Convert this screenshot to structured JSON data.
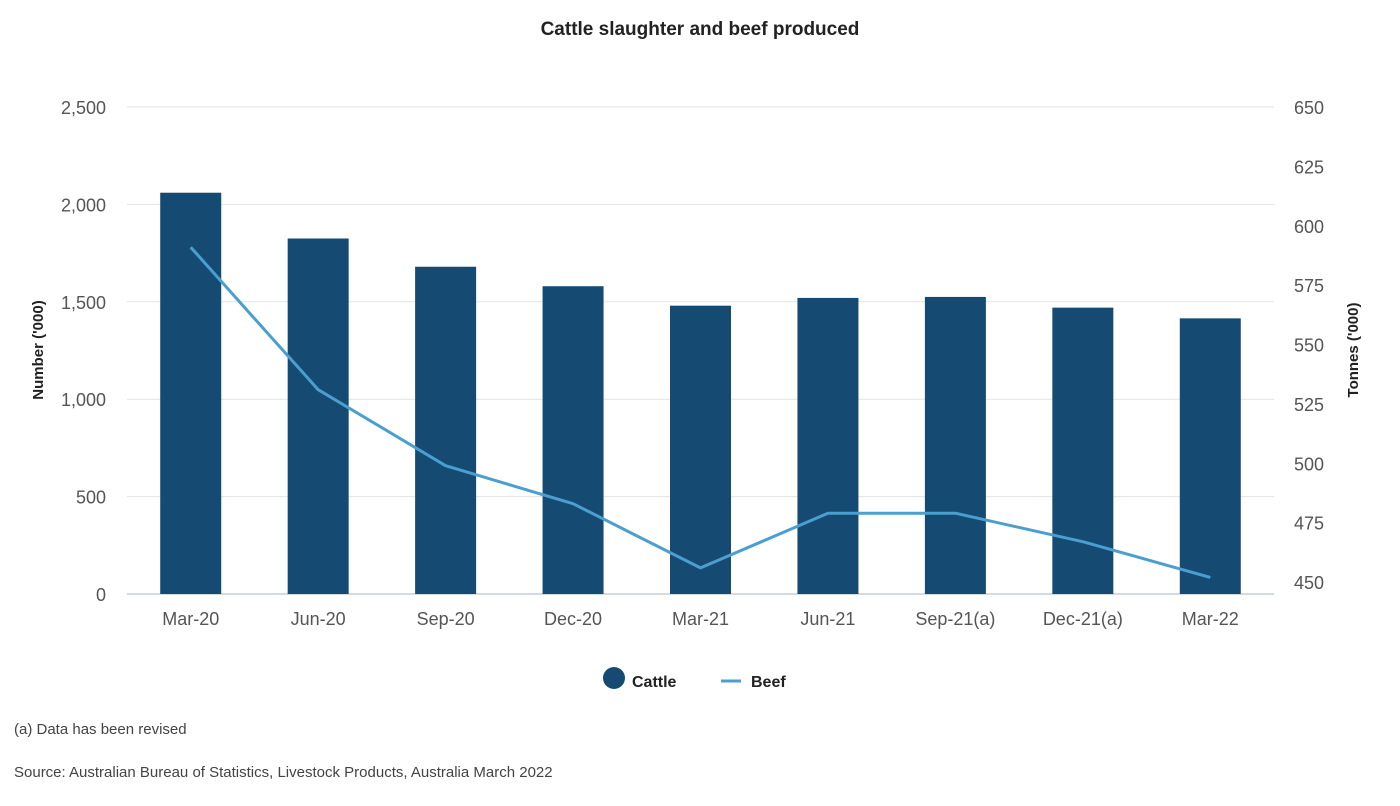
{
  "chart_data": {
    "type": "bar",
    "title": "Cattle slaughter and beef produced",
    "categories": [
      "Mar-20",
      "Jun-20",
      "Sep-20",
      "Dec-20",
      "Mar-21",
      "Jun-21",
      "Sep-21(a)",
      "Dec-21(a)",
      "Mar-22"
    ],
    "series": [
      {
        "name": "Cattle",
        "type": "bar",
        "axis": "left",
        "values": [
          2060,
          1825,
          1680,
          1580,
          1480,
          1520,
          1525,
          1470,
          1415
        ]
      },
      {
        "name": "Beef",
        "type": "line",
        "axis": "right",
        "values": [
          591,
          531,
          499,
          483,
          456,
          479,
          479,
          467,
          452
        ]
      }
    ],
    "ylabel": "Number ('000)",
    "ylim": [
      0,
      2500
    ],
    "yticks": [
      "0",
      "500",
      "1,000",
      "1,500",
      "2,000",
      "2,500"
    ],
    "y2label": "Tonnes ('000)",
    "y2lim": [
      445,
      650
    ],
    "y2ticks": [
      "450",
      "475",
      "500",
      "525",
      "550",
      "575",
      "600",
      "625",
      "650"
    ],
    "grid": true,
    "legend_position": "bottom",
    "colors": {
      "Cattle": "#154a73",
      "Beef": "#4a9fd0"
    }
  },
  "notes": {
    "revised": "(a) Data has been revised",
    "source": "Source: Australian Bureau of Statistics, Livestock Products, Australia March 2022"
  }
}
